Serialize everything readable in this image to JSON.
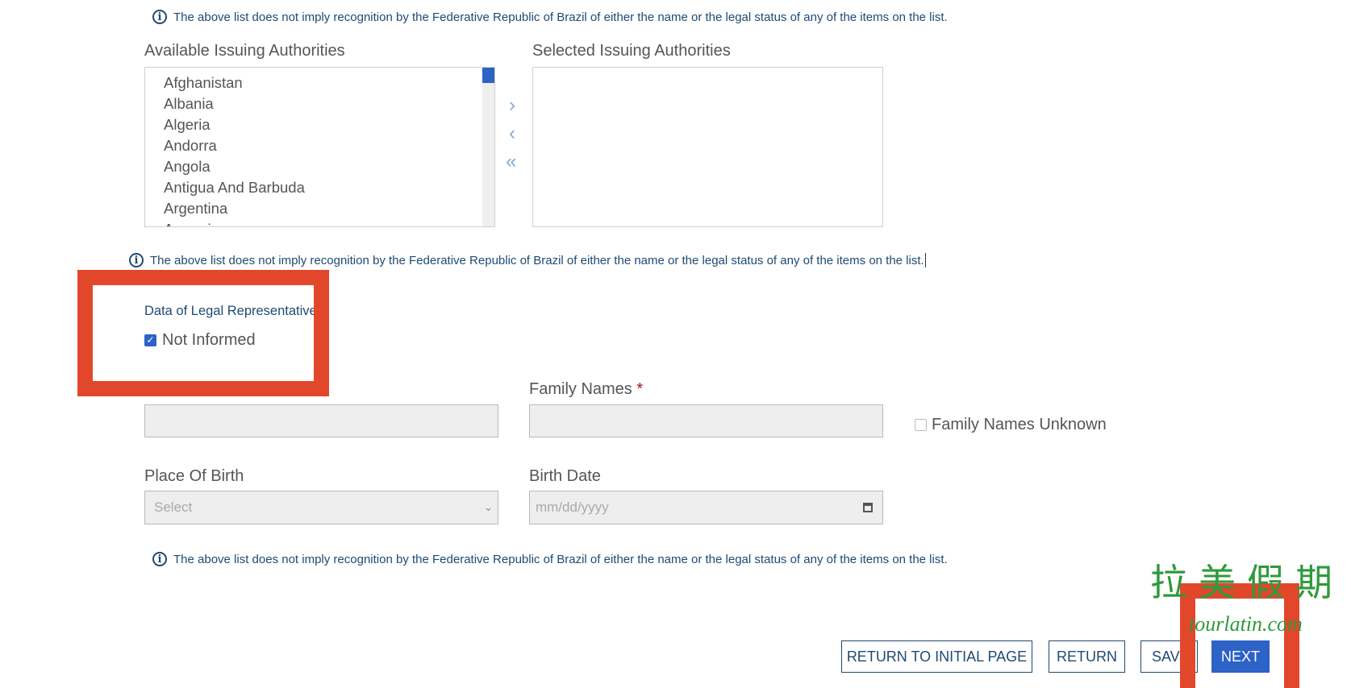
{
  "notice": "The above list does not imply recognition by the Federative Republic of Brazil of either the name or the legal status of any of the items on the list.",
  "available": {
    "label": "Available Issuing Authorities",
    "items": [
      "Afghanistan",
      "Albania",
      "Algeria",
      "Andorra",
      "Angola",
      "Antigua And Barbuda",
      "Argentina",
      "Armenia"
    ]
  },
  "selected": {
    "label": "Selected Issuing Authorities"
  },
  "arrows": {
    "add": "›",
    "remove": "‹",
    "remove_all": "«"
  },
  "legal_rep": {
    "title": "Data of Legal Representative",
    "not_informed_label": "Not Informed",
    "not_informed_checked": true
  },
  "form": {
    "family_names_label": "Family Names",
    "required_mark": "*",
    "family_unknown_label": "Family Names Unknown",
    "place_of_birth_label": "Place Of Birth",
    "place_of_birth_value": "Select",
    "birth_date_label": "Birth Date",
    "birth_date_placeholder": "mm/dd/yyyy"
  },
  "buttons": {
    "return_initial": "RETURN TO INITIAL PAGE",
    "return": "RETURN",
    "save": "SAVE",
    "next": "NEXT"
  },
  "watermark": {
    "cn": "拉美假期",
    "url": "tourlatin.com"
  },
  "colors": {
    "accent": "#2d62c6",
    "highlight": "#e2472b",
    "notice": "#1f4a72",
    "watermark": "#2e9a3c"
  }
}
